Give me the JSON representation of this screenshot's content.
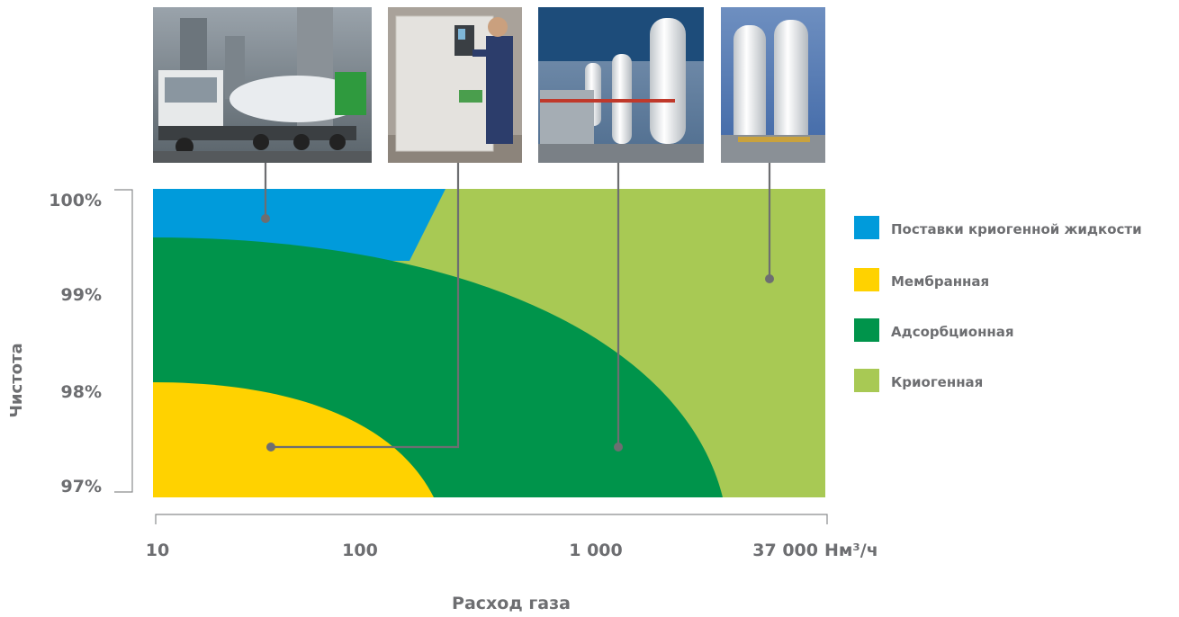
{
  "chart_data": {
    "type": "area",
    "xlabel": "Расход газа",
    "ylabel": "Чистота",
    "y_ticks": [
      "100%",
      "99%",
      "98%",
      "97%"
    ],
    "ylim": [
      97,
      100
    ],
    "x_ticks": [
      {
        "label": "10",
        "value": 10
      },
      {
        "label": "100",
        "value": 100
      },
      {
        "label": "1 000",
        "value": 1000
      },
      {
        "label": "37 000",
        "value": 37000
      }
    ],
    "x_unit": "Нм³/ч",
    "x_scale": "log",
    "series": [
      {
        "name": "Поставки криогенной жидкости",
        "color": "#009bdb"
      },
      {
        "name": "Мембранная",
        "color": "#ffd200"
      },
      {
        "name": "Адсорбционная",
        "color": "#00944b"
      },
      {
        "name": "Криогенная",
        "color": "#a8c954"
      }
    ],
    "images": [
      {
        "name": "tanker-truck-photo"
      },
      {
        "name": "membrane-unit-photo"
      },
      {
        "name": "adsorption-plant-photo"
      },
      {
        "name": "cryogenic-tanks-photo"
      }
    ],
    "grid": false,
    "legend": "right"
  }
}
